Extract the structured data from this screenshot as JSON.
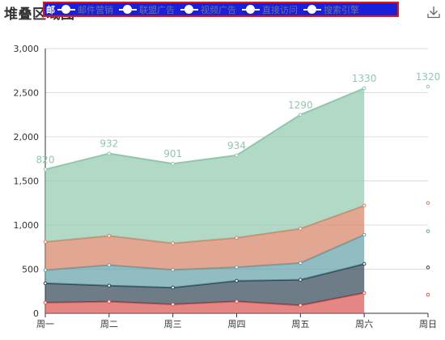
{
  "title": "堆叠区域图",
  "toolbox": {
    "icon": "download-icon"
  },
  "legend": {
    "first_label": "邮",
    "items": [
      "邮件营销",
      "联盟广告",
      "视频广告",
      "直接访问",
      "搜索引擎"
    ]
  },
  "chart_data": {
    "type": "area",
    "stacked": true,
    "categories": [
      "周一",
      "周二",
      "周三",
      "周四",
      "周五",
      "周六",
      "周日"
    ],
    "ylim": [
      0,
      3000
    ],
    "y_ticks": [
      0,
      500,
      1000,
      1500,
      2000,
      2500,
      3000
    ],
    "y_tick_labels": [
      "0",
      "500",
      "1,000",
      "1,500",
      "2,000",
      "2,500",
      "3,000"
    ],
    "grid": true,
    "series": [
      {
        "name": "邮件营销",
        "color": "#d9534f",
        "values": [
          120,
          132,
          101,
          134,
          90,
          230,
          210
        ]
      },
      {
        "name": "联盟广告",
        "color": "#2f4554",
        "values": [
          220,
          182,
          191,
          234,
          290,
          330,
          310
        ]
      },
      {
        "name": "视频广告",
        "color": "#61a0a8",
        "values": [
          150,
          232,
          201,
          154,
          190,
          330,
          410
        ]
      },
      {
        "name": "直接访问",
        "color": "#d48265",
        "values": [
          320,
          332,
          301,
          334,
          390,
          330,
          320
        ]
      },
      {
        "name": "搜索引擎",
        "color": "#91c7ae",
        "values": [
          820,
          932,
          901,
          934,
          1290,
          1330,
          1320
        ]
      }
    ],
    "data_labels_series": "搜索引擎"
  }
}
